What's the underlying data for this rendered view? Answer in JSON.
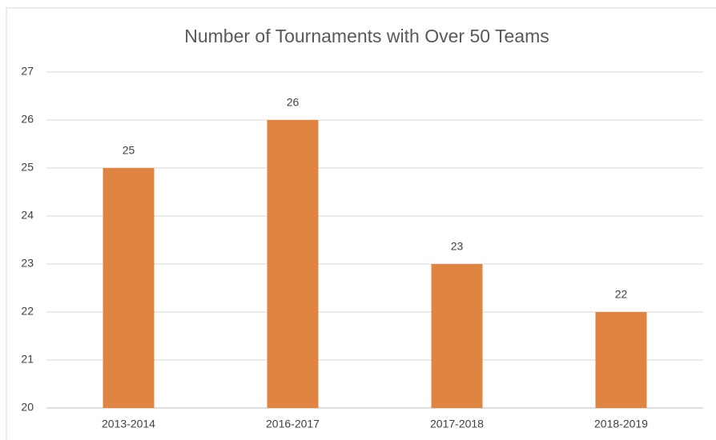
{
  "chart_data": {
    "type": "bar",
    "title": "Number of Tournaments with Over 50 Teams",
    "categories": [
      "2013-2014",
      "2016-2017",
      "2017-2018",
      "2018-2019"
    ],
    "values": [
      25,
      26,
      23,
      22
    ],
    "color": "#e08442",
    "ylim": [
      20,
      27
    ],
    "yticks": [
      20,
      21,
      22,
      23,
      24,
      25,
      26,
      27
    ],
    "grid": true,
    "data_labels": true
  }
}
